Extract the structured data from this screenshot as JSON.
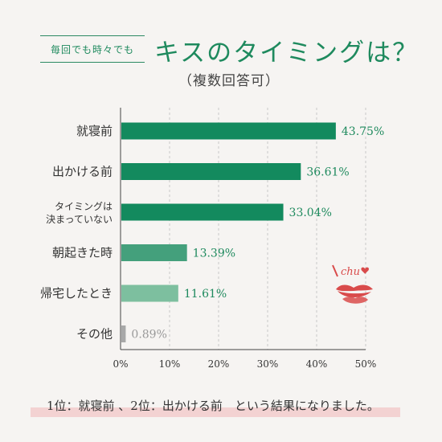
{
  "header": {
    "tag": "毎回でも時々でも",
    "title": "キスのタイミングは？",
    "subtitle": "（複数回答可）"
  },
  "chart_data": {
    "type": "bar",
    "orientation": "horizontal",
    "categories": [
      "就寝前",
      "出かける前",
      "タイミングは\n決まっていない",
      "朝起きた時",
      "帰宅したとき",
      "その他"
    ],
    "values": [
      43.75,
      36.61,
      33.04,
      13.39,
      11.61,
      0.89
    ],
    "value_labels": [
      "43.75%",
      "36.61%",
      "33.04%",
      "13.39%",
      "11.61%",
      "0.89%"
    ],
    "bar_colors": [
      "#138a5e",
      "#138a5e",
      "#138a5e",
      "#44a07c",
      "#7dbf9f",
      "#a8a8a8"
    ],
    "label_colors": [
      "#1f8a5e",
      "#1f8a5e",
      "#1f8a5e",
      "#1f8a5e",
      "#1f8a5e",
      "#999999"
    ],
    "xlim": [
      0,
      50
    ],
    "xticks": [
      0,
      10,
      20,
      30,
      40,
      50
    ],
    "xtick_labels": [
      "0%",
      "10%",
      "20%",
      "30%",
      "40%",
      "50%"
    ],
    "grid": "vertical-dashed"
  },
  "decoration": {
    "chu_text": "chu",
    "accent": "#d94b4b"
  },
  "footer": {
    "text": "1位：就寝前 、2位：出かける前　という結果になりました。"
  }
}
